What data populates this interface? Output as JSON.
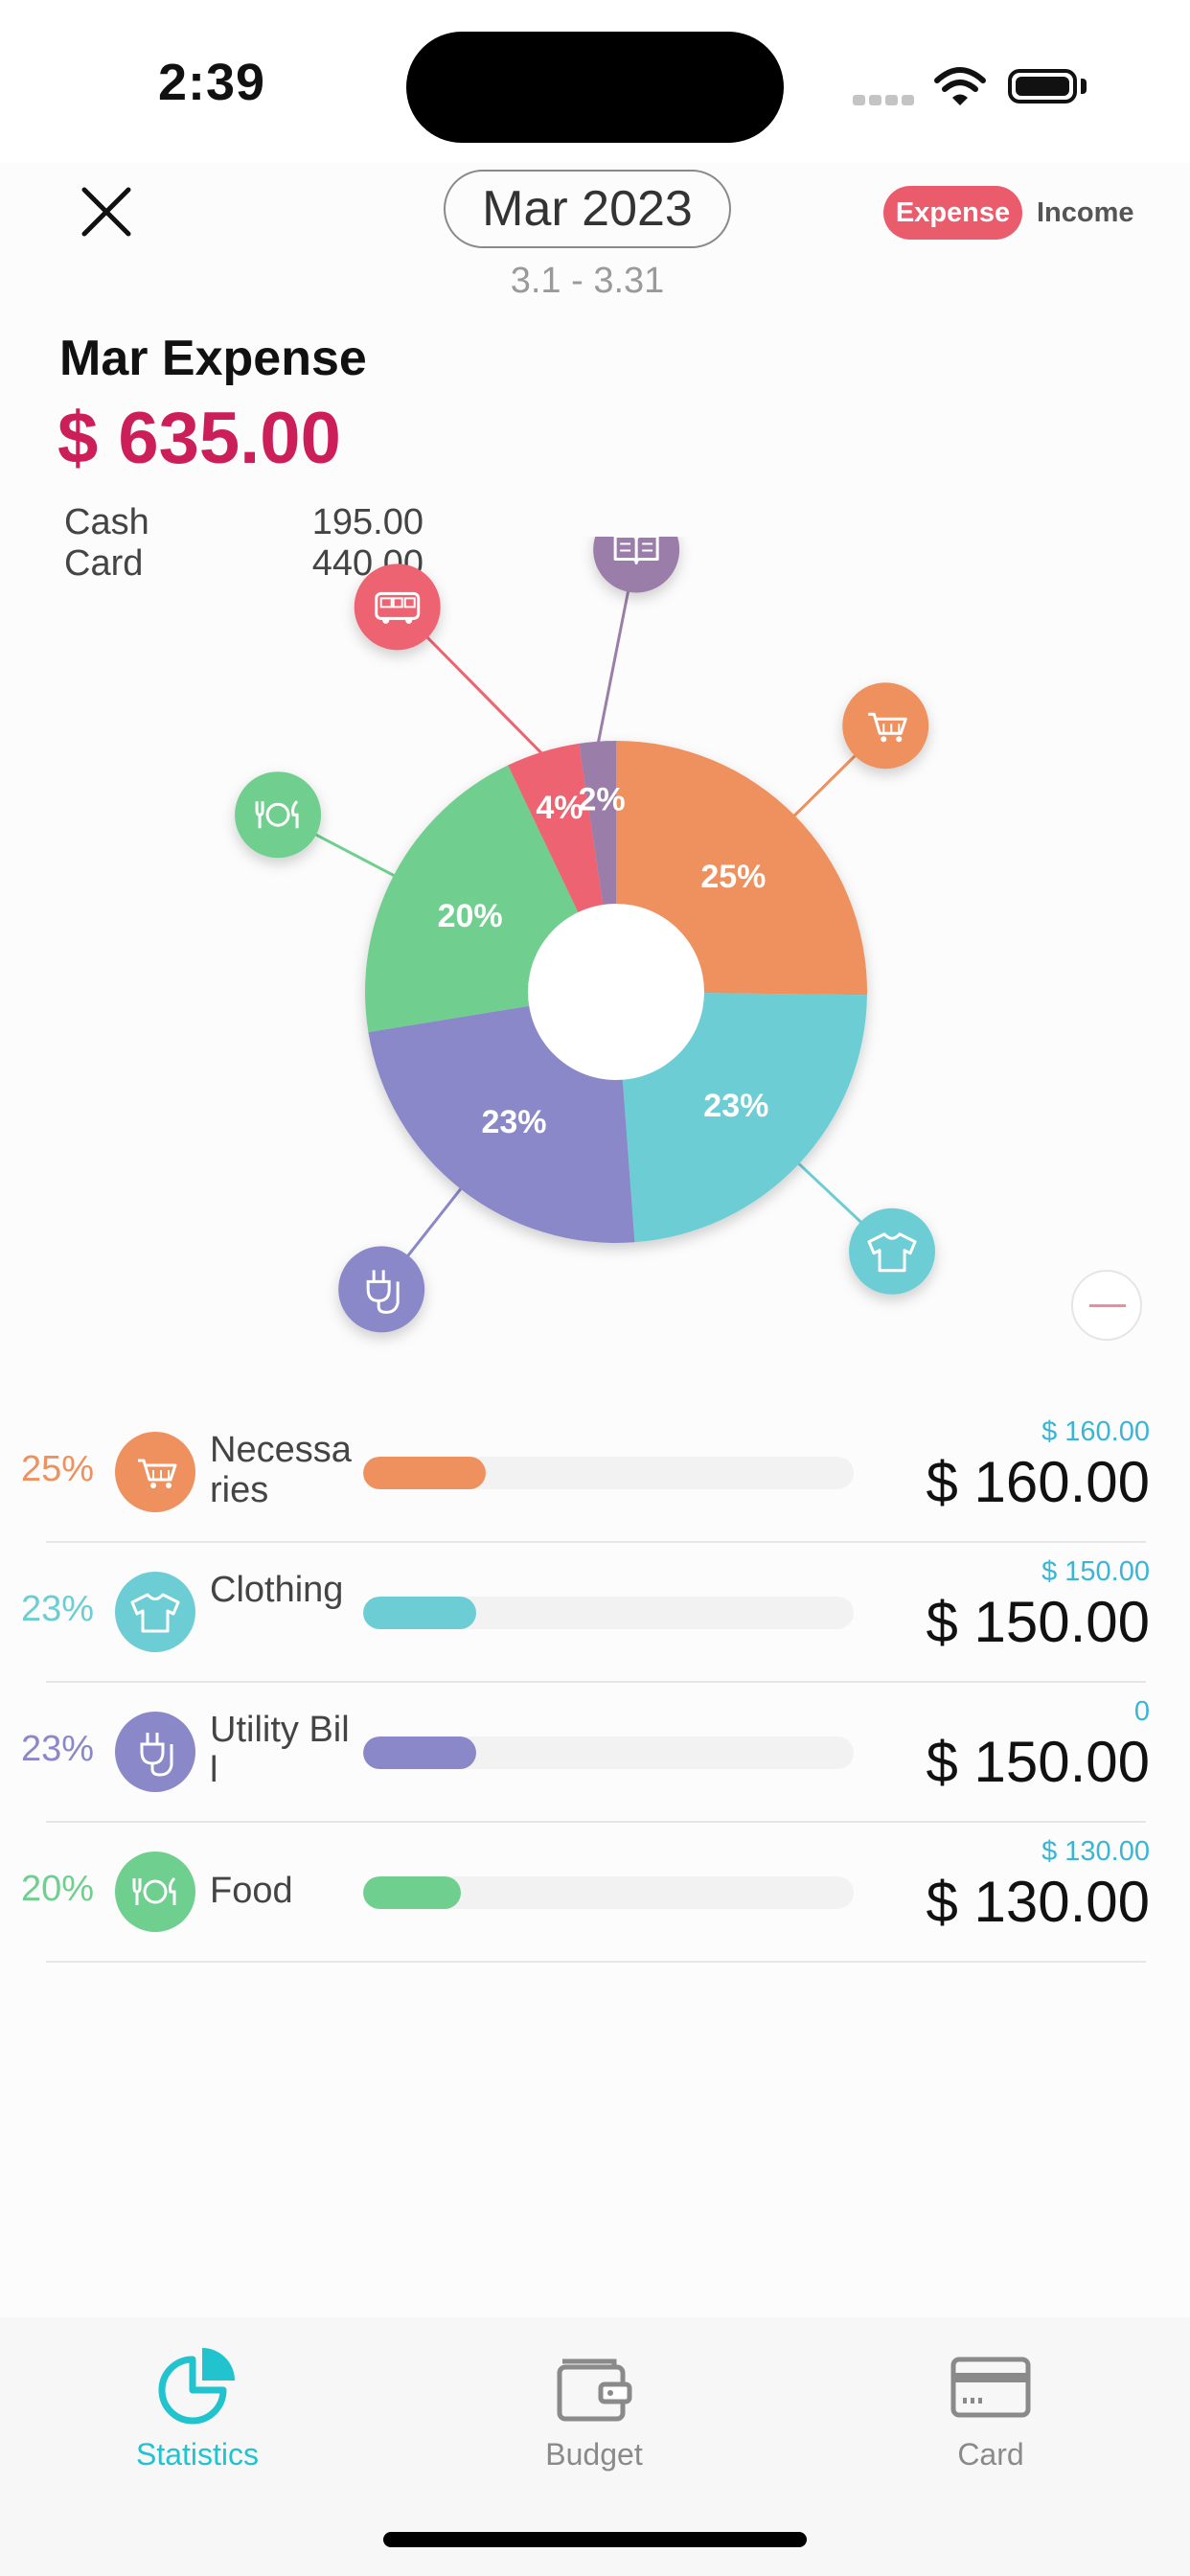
{
  "status_bar": {
    "time": "2:39"
  },
  "header": {
    "month": "Mar 2023",
    "date_range": "3.1 - 3.31",
    "tabs": [
      {
        "label": "Expense",
        "active": true
      },
      {
        "label": "Income",
        "active": false
      }
    ]
  },
  "summary": {
    "title": "Mar Expense",
    "amount": "$ 635.00",
    "payments": [
      {
        "method": "Cash",
        "value": "195.00"
      },
      {
        "method": "Card",
        "value": "440.00"
      }
    ]
  },
  "chart_data": {
    "type": "pie",
    "donut": true,
    "slices": [
      {
        "category": "Necessaries",
        "value": 160,
        "label": "25%",
        "color": "#ee915e",
        "icon": "cart-icon"
      },
      {
        "category": "Clothing",
        "value": 150,
        "label": "23%",
        "color": "#6dcdd4",
        "icon": "shirt-icon"
      },
      {
        "category": "Utility Bill",
        "value": 150,
        "label": "23%",
        "color": "#8a88c9",
        "icon": "plug-icon"
      },
      {
        "category": "Food",
        "value": 130,
        "label": "20%",
        "color": "#6fcf8e",
        "icon": "dining-icon"
      },
      {
        "category": "Transport",
        "value": 30,
        "label": "4%",
        "color": "#ee6371",
        "icon": "bus-icon"
      },
      {
        "category": "Education",
        "value": 15,
        "label": "2%",
        "color": "#9a7ea9",
        "icon": "book-icon"
      }
    ]
  },
  "categories": [
    {
      "pct": "25%",
      "name": "Necessaries",
      "budget": "$ 160.00",
      "amount": "$ 160.00",
      "progress": 0.25,
      "color": "#ee915e",
      "icon": "cart-icon"
    },
    {
      "pct": "23%",
      "name": "Clothing",
      "budget": "$ 150.00",
      "amount": "$ 150.00",
      "progress": 0.23,
      "color": "#6dcdd4",
      "icon": "shirt-icon"
    },
    {
      "pct": "23%",
      "name": "Utility Bill",
      "budget": "0",
      "amount": "$ 150.00",
      "progress": 0.23,
      "color": "#8a88c9",
      "icon": "plug-icon"
    },
    {
      "pct": "20%",
      "name": "Food",
      "budget": "$ 130.00",
      "amount": "$ 130.00",
      "progress": 0.2,
      "color": "#6fcf8e",
      "icon": "dining-icon"
    }
  ],
  "tabbar": {
    "items": [
      {
        "label": "Statistics",
        "icon": "pie-chart-icon",
        "active": true
      },
      {
        "label": "Budget",
        "icon": "wallet-icon",
        "active": false
      },
      {
        "label": "Card",
        "icon": "credit-card-icon",
        "active": false
      }
    ],
    "active_color": "#21c3cf",
    "inactive_color": "#8a8a8a"
  }
}
